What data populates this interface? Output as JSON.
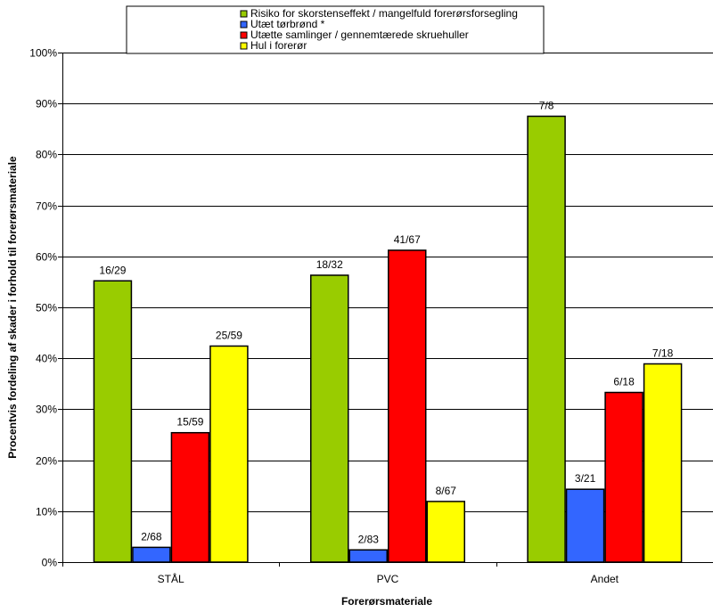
{
  "chart_data": {
    "type": "bar",
    "title": "",
    "xlabel": "Forerørsmateriale",
    "ylabel": "Procentvis fordeling af skader i forhold til forerørsmateriale",
    "ylim": [
      0,
      100
    ],
    "yticks": [
      "0%",
      "10%",
      "20%",
      "30%",
      "40%",
      "50%",
      "60%",
      "70%",
      "80%",
      "90%",
      "100%"
    ],
    "grid": true,
    "legend_position": "top",
    "categories": [
      "STÅL",
      "PVC",
      "Andet"
    ],
    "series": [
      {
        "name": "Risiko for skorstenseffekt / mangelfuld forerørsforsegling",
        "color": "#99cc00",
        "values": [
          55.2,
          56.3,
          87.5
        ],
        "labels": [
          "16/29",
          "18/32",
          "7/8"
        ]
      },
      {
        "name": "Utæt tørbrønd *",
        "color": "#3366ff",
        "values": [
          2.9,
          2.4,
          14.3
        ],
        "labels": [
          "2/68",
          "2/83",
          "3/21"
        ]
      },
      {
        "name": "Utætte samlinger / gennemtærede skruehuller",
        "color": "#ff0000",
        "values": [
          25.4,
          61.2,
          33.3
        ],
        "labels": [
          "15/59",
          "41/67",
          "6/18"
        ]
      },
      {
        "name": "Hul i forerør",
        "color": "#ffff00",
        "values": [
          42.4,
          11.9,
          38.9
        ],
        "labels": [
          "25/59",
          "8/67",
          "7/18"
        ]
      }
    ]
  }
}
